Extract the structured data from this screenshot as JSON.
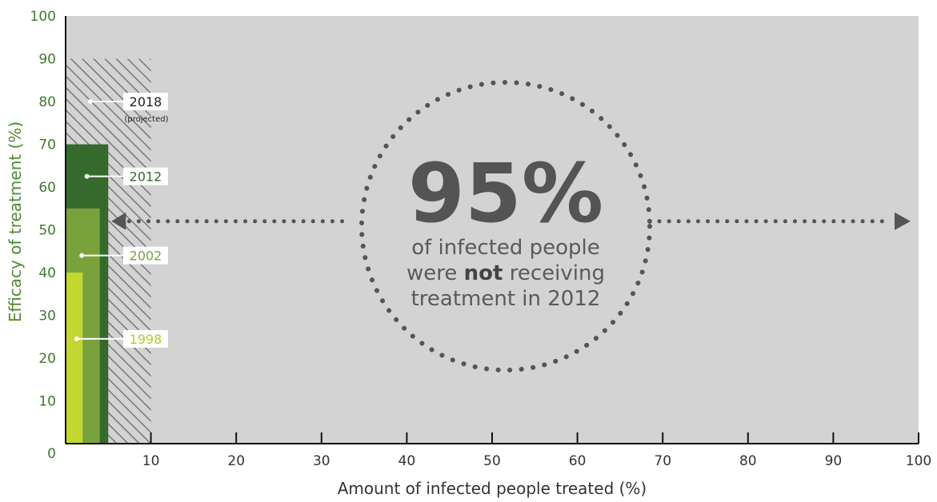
{
  "chart_data": {
    "type": "bar",
    "title": "",
    "xlabel": "Amount of infected people treated (%)",
    "ylabel": "Efficacy of treatment (%)",
    "xlim": [
      0,
      100
    ],
    "ylim": [
      0,
      100
    ],
    "x_ticks": [
      "10",
      "20",
      "30",
      "40",
      "50",
      "60",
      "70",
      "80",
      "90",
      "100"
    ],
    "y_ticks": [
      "0",
      "10",
      "20",
      "30",
      "40",
      "50",
      "60",
      "70",
      "80",
      "90",
      "100"
    ],
    "grid": false,
    "series": [
      {
        "year": "2018",
        "note": "(projected)",
        "x": 10,
        "y": 90,
        "color": "#8a8a8a",
        "pattern": "hatched"
      },
      {
        "year": "2012",
        "note": "",
        "x": 5,
        "y": 70,
        "color": "#356a2c"
      },
      {
        "year": "2002",
        "note": "",
        "x": 4,
        "y": 55,
        "color": "#7aa23c"
      },
      {
        "year": "1998",
        "note": "",
        "x": 2,
        "y": 40,
        "color": "#c4d730"
      }
    ],
    "annotation": {
      "big_value": "95%",
      "line1": "of infected people",
      "line2_pre": "were ",
      "line2_bold": "not",
      "line2_post": " receiving",
      "line3": "treatment in 2012",
      "arrow_from_x": 5,
      "arrow_to_x": 100,
      "arrow_y": 52
    },
    "colors": {
      "plot_background": "#d3d3d3",
      "axis": "#111111",
      "dots": "#555555"
    }
  }
}
